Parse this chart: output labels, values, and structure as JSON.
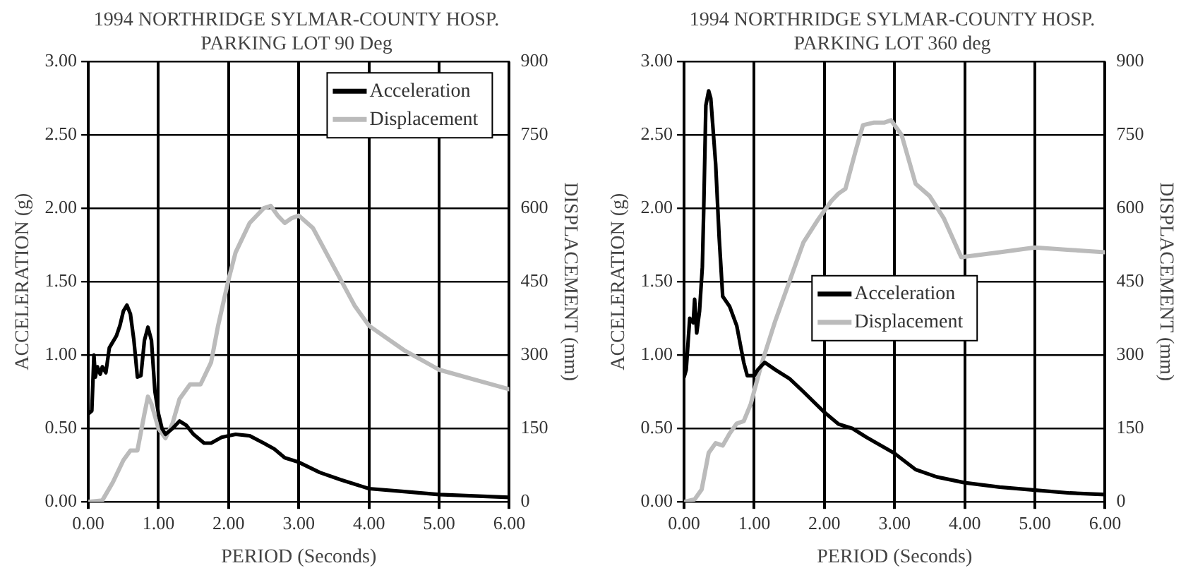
{
  "chart_data": [
    {
      "type": "line",
      "title": "1994 NORTHRIDGE SYLMAR-COUNTY HOSP.",
      "subtitle": "PARKING LOT 90 Deg",
      "xlabel": "PERIOD (Seconds)",
      "ylabel": "ACCELERATION (g)",
      "y2label": "DISPLACEMENT (mm)",
      "xlim": [
        0,
        6
      ],
      "xticks": [
        {
          "value": 0,
          "label": "0.00"
        },
        {
          "value": 1,
          "label": "1.00"
        },
        {
          "value": 2,
          "label": "2.00"
        },
        {
          "value": 3,
          "label": "3.00"
        },
        {
          "value": 4,
          "label": "4.00"
        },
        {
          "value": 5,
          "label": "5.00"
        },
        {
          "value": 6,
          "label": "6.00"
        }
      ],
      "ylim": [
        0,
        3
      ],
      "yticks": [
        {
          "value": 0,
          "label": "0.00"
        },
        {
          "value": 0.5,
          "label": "0.50"
        },
        {
          "value": 1,
          "label": "1.00"
        },
        {
          "value": 1.5,
          "label": "1.50"
        },
        {
          "value": 2,
          "label": "2.00"
        },
        {
          "value": 2.5,
          "label": "2.50"
        },
        {
          "value": 3,
          "label": "3.00"
        }
      ],
      "y2lim": [
        0,
        900
      ],
      "y2ticks": [
        0,
        150,
        300,
        450,
        600,
        750,
        900
      ],
      "grid": true,
      "legend": "top right",
      "marker": "none",
      "line_style": "solid",
      "series": [
        {
          "name": "Acceleration",
          "color": "#000000",
          "x": [
            0,
            0.05,
            0.08,
            0.1,
            0.13,
            0.17,
            0.2,
            0.25,
            0.3,
            0.4,
            0.45,
            0.5,
            0.55,
            0.6,
            0.65,
            0.7,
            0.75,
            0.8,
            0.85,
            0.9,
            0.95,
            1.0,
            1.05,
            1.1,
            1.2,
            1.3,
            1.4,
            1.5,
            1.65,
            1.75,
            1.9,
            2.1,
            2.3,
            2.5,
            2.65,
            2.8,
            3.0,
            3.3,
            3.6,
            4.0,
            4.5,
            5.0,
            5.5,
            6.0
          ],
          "values": [
            0.6,
            0.62,
            1.0,
            0.85,
            0.92,
            0.87,
            0.92,
            0.88,
            1.05,
            1.13,
            1.2,
            1.3,
            1.34,
            1.28,
            1.1,
            0.85,
            0.86,
            1.1,
            1.19,
            1.1,
            0.75,
            0.6,
            0.5,
            0.46,
            0.5,
            0.55,
            0.52,
            0.46,
            0.4,
            0.4,
            0.44,
            0.46,
            0.45,
            0.4,
            0.36,
            0.3,
            0.27,
            0.2,
            0.15,
            0.09,
            0.07,
            0.05,
            0.04,
            0.03
          ]
        },
        {
          "name": "Displacement",
          "color": "#bbbbbb",
          "axis": "y2",
          "x": [
            0,
            0.2,
            0.35,
            0.5,
            0.6,
            0.7,
            0.8,
            0.85,
            0.9,
            1.0,
            1.1,
            1.2,
            1.3,
            1.45,
            1.6,
            1.75,
            1.85,
            2.0,
            2.1,
            2.3,
            2.5,
            2.6,
            2.7,
            2.8,
            2.9,
            3.0,
            3.2,
            3.5,
            3.8,
            4.0,
            4.5,
            5.0,
            5.5,
            6.0
          ],
          "values": [
            0,
            3,
            40,
            85,
            105,
            105,
            180,
            215,
            200,
            150,
            130,
            160,
            210,
            240,
            240,
            285,
            360,
            455,
            510,
            570,
            600,
            605,
            585,
            570,
            580,
            585,
            560,
            480,
            400,
            360,
            310,
            270,
            250,
            230
          ]
        }
      ]
    },
    {
      "type": "line",
      "title": "1994 NORTHRIDGE SYLMAR-COUNTY HOSP.",
      "subtitle": "PARKING LOT 360 deg",
      "xlabel": "PERIOD (Seconds)",
      "ylabel": "ACCELERATION (g)",
      "y2label": "DISPLACEMENT (mm)",
      "xlim": [
        0,
        6
      ],
      "xticks": [
        {
          "value": 0,
          "label": "0.00"
        },
        {
          "value": 1,
          "label": "1.00"
        },
        {
          "value": 2,
          "label": "2.00"
        },
        {
          "value": 3,
          "label": "3.00"
        },
        {
          "value": 4,
          "label": "4.00"
        },
        {
          "value": 5,
          "label": "5.00"
        },
        {
          "value": 6,
          "label": "6.00"
        }
      ],
      "ylim": [
        0,
        3
      ],
      "yticks": [
        {
          "value": 0,
          "label": "0.00"
        },
        {
          "value": 0.5,
          "label": "0.50"
        },
        {
          "value": 1,
          "label": "1.00"
        },
        {
          "value": 1.5,
          "label": "1.50"
        },
        {
          "value": 2,
          "label": "2.00"
        },
        {
          "value": 2.5,
          "label": "2.50"
        },
        {
          "value": 3,
          "label": "3.00"
        }
      ],
      "y2lim": [
        0,
        900
      ],
      "y2ticks": [
        0,
        150,
        300,
        450,
        600,
        750,
        900
      ],
      "grid": true,
      "legend": "center",
      "marker": "none",
      "line_style": "solid",
      "series": [
        {
          "name": "Acceleration",
          "color": "#000000",
          "x": [
            0,
            0.03,
            0.08,
            0.13,
            0.15,
            0.18,
            0.22,
            0.26,
            0.28,
            0.31,
            0.35,
            0.38,
            0.45,
            0.5,
            0.55,
            0.65,
            0.75,
            0.85,
            0.9,
            1.0,
            1.05,
            1.15,
            1.3,
            1.5,
            1.7,
            2.0,
            2.2,
            2.4,
            2.6,
            3.0,
            3.3,
            3.6,
            4.0,
            4.5,
            5.0,
            5.5,
            6.0
          ],
          "values": [
            0.85,
            0.9,
            1.25,
            1.22,
            1.38,
            1.15,
            1.3,
            1.6,
            2.0,
            2.7,
            2.8,
            2.75,
            2.3,
            1.8,
            1.4,
            1.33,
            1.2,
            0.95,
            0.86,
            0.86,
            0.9,
            0.95,
            0.9,
            0.84,
            0.75,
            0.61,
            0.53,
            0.5,
            0.44,
            0.33,
            0.22,
            0.17,
            0.13,
            0.1,
            0.08,
            0.06,
            0.05
          ]
        },
        {
          "name": "Displacement",
          "color": "#bbbbbb",
          "axis": "y2",
          "x": [
            0,
            0.15,
            0.25,
            0.35,
            0.45,
            0.55,
            0.65,
            0.75,
            0.85,
            0.95,
            1.1,
            1.3,
            1.5,
            1.7,
            1.9,
            2.1,
            2.2,
            2.3,
            2.45,
            2.55,
            2.7,
            2.85,
            2.95,
            3.1,
            3.3,
            3.5,
            3.7,
            3.95,
            4.5,
            5.0,
            5.5,
            6.0
          ],
          "values": [
            0,
            5,
            25,
            100,
            120,
            115,
            140,
            160,
            165,
            200,
            280,
            370,
            450,
            530,
            575,
            615,
            630,
            640,
            720,
            770,
            775,
            775,
            780,
            750,
            650,
            625,
            580,
            500,
            510,
            520,
            515,
            510
          ]
        }
      ]
    }
  ]
}
